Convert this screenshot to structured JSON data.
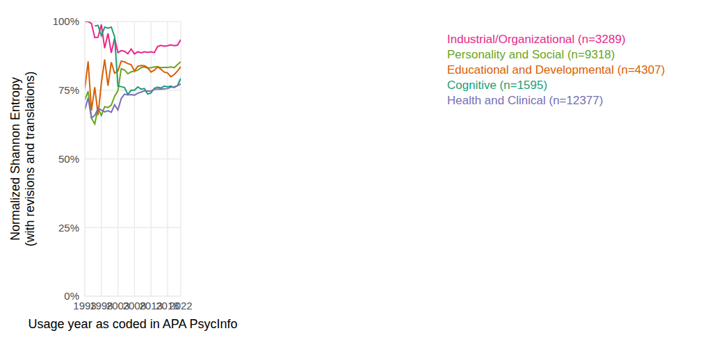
{
  "chart_data": {
    "type": "line",
    "x_label": "Usage year as coded in APA PsycInfo",
    "y_label": [
      "Normalized Shannon Entropy",
      "(with revisions and translations)"
    ],
    "x": [
      1993,
      1994,
      1995,
      1996,
      1997,
      1998,
      1999,
      2000,
      2001,
      2002,
      2003,
      2004,
      2005,
      2006,
      2007,
      2008,
      2009,
      2010,
      2011,
      2012,
      2013,
      2014,
      2015,
      2016,
      2017,
      2018,
      2019,
      2020,
      2021,
      2022
    ],
    "xlim": [
      1993,
      2022
    ],
    "xticks": [
      1993,
      1998,
      2003,
      2008,
      2013,
      2018,
      2022
    ],
    "ylim": [
      0,
      100
    ],
    "yticks": [
      {
        "value": 0,
        "label": "0%"
      },
      {
        "value": 25,
        "label": "25%"
      },
      {
        "value": 50,
        "label": "50%"
      },
      {
        "value": 75,
        "label": "75%"
      },
      {
        "value": 100,
        "label": "100%"
      }
    ],
    "grid": true,
    "legend": "right",
    "series": [
      {
        "name": "Industrial/Organizational (n=3289)",
        "color": "#e7298a",
        "values": [
          100,
          100,
          99.3,
          94.2,
          94.3,
          98.9,
          90.3,
          95.7,
          88.6,
          94.0,
          88.7,
          89.4,
          89.2,
          88.3,
          90.0,
          88.2,
          89.0,
          88.6,
          89.0,
          88.8,
          89.0,
          88.7,
          90.9,
          91.3,
          91.0,
          91.2,
          91.5,
          91.2,
          91.4,
          93.4
        ]
      },
      {
        "name": "Personality and Social (n=9318)",
        "color": "#66a61e",
        "values": [
          71.5,
          74.6,
          64.8,
          62.7,
          68.5,
          65.8,
          69.0,
          68.7,
          69.6,
          72.8,
          74.8,
          82.8,
          82.4,
          81.0,
          81.7,
          81.9,
          82.3,
          83.2,
          83.5,
          83.0,
          83.2,
          83.5,
          83.6,
          83.2,
          83.3,
          83.3,
          83.5,
          83.2,
          84.3,
          85.4
        ]
      },
      {
        "name": "Educational and Developmental (n=4307)",
        "color": "#d95f02",
        "values": [
          75.6,
          85.5,
          67.6,
          76.1,
          66.0,
          77.6,
          86.2,
          76.6,
          85.2,
          81.2,
          82.0,
          85.6,
          85.3,
          84.7,
          84.3,
          82.0,
          83.7,
          84.0,
          83.9,
          83.2,
          81.6,
          82.3,
          83.5,
          82.6,
          81.6,
          81.3,
          79.9,
          80.7,
          82.0,
          83.6
        ]
      },
      {
        "name": "Cognitive (n=1595)",
        "color": "#1b9e77",
        "values": [
          null,
          null,
          null,
          98.4,
          98.6,
          94.8,
          98.0,
          97.6,
          98.0,
          94.5,
          76.5,
          76.3,
          76.0,
          73.5,
          75.0,
          75.0,
          76.2,
          75.4,
          75.6,
          73.6,
          74.0,
          75.7,
          76.1,
          75.8,
          76.5,
          76.2,
          76.5,
          76.0,
          76.7,
          79.3
        ]
      },
      {
        "name": "Health and Clinical (n=12377)",
        "color": "#7570b3",
        "values": [
          67.9,
          72.2,
          65.0,
          65.8,
          68.4,
          67.8,
          67.1,
          67.5,
          67.0,
          69.7,
          67.8,
          72.0,
          73.6,
          73.3,
          73.4,
          73.2,
          73.9,
          74.3,
          74.8,
          74.7,
          74.7,
          75.3,
          75.4,
          75.4,
          75.5,
          75.6,
          76.1,
          76.2,
          76.6,
          77.3
        ]
      }
    ]
  }
}
